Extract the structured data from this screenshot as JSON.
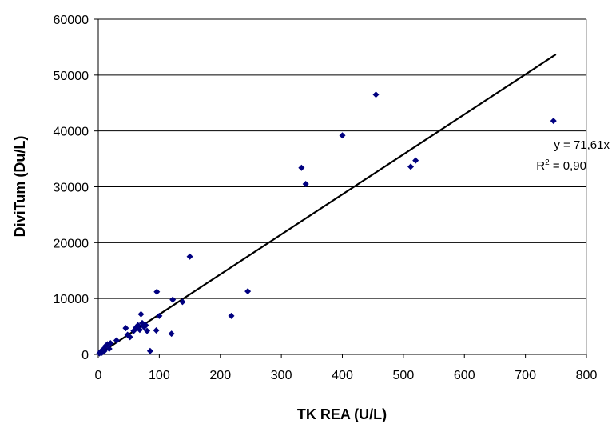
{
  "chart_data": {
    "type": "scatter",
    "xlabel": "TK REA (U/L)",
    "ylabel": "DiviTum (Du/L)",
    "xlim": [
      0,
      800
    ],
    "ylim": [
      0,
      60000
    ],
    "x_ticks": [
      "0",
      "100",
      "200",
      "300",
      "400",
      "500",
      "600",
      "700",
      "800"
    ],
    "y_ticks": [
      "0",
      "10000",
      "20000",
      "30000",
      "40000",
      "50000",
      "60000"
    ],
    "grid": "horizontal",
    "marker_color": "#000080",
    "trendline": {
      "equation": "y = 71,61x",
      "r2_prefix": "R",
      "r2_sup": "2",
      "r2_value": " = 0,90",
      "slope": 71.61,
      "x_end": 750,
      "color": "#000000"
    },
    "points": [
      {
        "x": 2,
        "y": 200
      },
      {
        "x": 4,
        "y": 500
      },
      {
        "x": 6,
        "y": 300
      },
      {
        "x": 8,
        "y": 900
      },
      {
        "x": 10,
        "y": 600
      },
      {
        "x": 12,
        "y": 1500
      },
      {
        "x": 15,
        "y": 1800
      },
      {
        "x": 18,
        "y": 1000
      },
      {
        "x": 20,
        "y": 2000
      },
      {
        "x": 30,
        "y": 2500
      },
      {
        "x": 45,
        "y": 4700
      },
      {
        "x": 48,
        "y": 3500
      },
      {
        "x": 52,
        "y": 3100
      },
      {
        "x": 58,
        "y": 4200
      },
      {
        "x": 62,
        "y": 4800
      },
      {
        "x": 65,
        "y": 5200
      },
      {
        "x": 68,
        "y": 4400
      },
      {
        "x": 70,
        "y": 7200
      },
      {
        "x": 72,
        "y": 5600
      },
      {
        "x": 75,
        "y": 4900
      },
      {
        "x": 78,
        "y": 5200
      },
      {
        "x": 80,
        "y": 4200
      },
      {
        "x": 85,
        "y": 600
      },
      {
        "x": 95,
        "y": 4300
      },
      {
        "x": 96,
        "y": 11200
      },
      {
        "x": 100,
        "y": 6900
      },
      {
        "x": 120,
        "y": 3700
      },
      {
        "x": 122,
        "y": 9800
      },
      {
        "x": 138,
        "y": 9400
      },
      {
        "x": 150,
        "y": 17500
      },
      {
        "x": 218,
        "y": 6900
      },
      {
        "x": 245,
        "y": 11300
      },
      {
        "x": 333,
        "y": 33400
      },
      {
        "x": 340,
        "y": 30500
      },
      {
        "x": 400,
        "y": 39200
      },
      {
        "x": 455,
        "y": 46500
      },
      {
        "x": 512,
        "y": 33600
      },
      {
        "x": 520,
        "y": 34700
      },
      {
        "x": 746,
        "y": 41800
      }
    ]
  }
}
